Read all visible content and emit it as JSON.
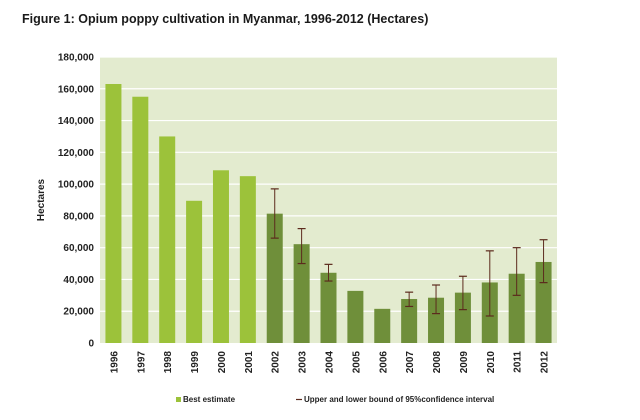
{
  "title": "Figure 1: Opium poppy cultivation in Myanmar, 1996-2012 (Hectares)",
  "colors": {
    "plot_bg": "#e3ebcf",
    "gridline": "#ffffff",
    "bar_light": "#9cc23a",
    "bar_dark": "#6f8f3a",
    "error_bar": "#5c2a1d"
  },
  "chart_data": {
    "type": "bar",
    "categories": [
      "1996",
      "1997",
      "1998",
      "1999",
      "2000",
      "2001",
      "2002",
      "2003",
      "2004",
      "2005",
      "2006",
      "2007",
      "2008",
      "2009",
      "2010",
      "2011",
      "2012"
    ],
    "series": [
      {
        "name": "Best estimate",
        "values": [
          163000,
          155000,
          130000,
          89500,
          108700,
          105000,
          81400,
          62200,
          44200,
          32800,
          21500,
          27700,
          28500,
          31700,
          38100,
          43600,
          51000
        ],
        "shade": [
          "light",
          "light",
          "light",
          "light",
          "light",
          "light",
          "dark",
          "dark",
          "dark",
          "dark",
          "dark",
          "dark",
          "dark",
          "dark",
          "dark",
          "dark",
          "dark"
        ]
      }
    ],
    "confidence_intervals": [
      null,
      null,
      null,
      null,
      null,
      null,
      [
        66000,
        97000
      ],
      [
        50000,
        72000
      ],
      [
        39000,
        49500
      ],
      null,
      null,
      [
        23000,
        32000
      ],
      [
        18500,
        36500
      ],
      [
        21000,
        42000
      ],
      [
        17000,
        58000
      ],
      [
        30000,
        60000
      ],
      [
        38000,
        65000
      ]
    ],
    "ylabel": "Hectares",
    "xlabel": "",
    "ylim": [
      0,
      180000
    ],
    "ytick_values": [
      0,
      20000,
      40000,
      60000,
      80000,
      100000,
      120000,
      140000,
      160000,
      180000
    ],
    "ytick_labels": [
      "0",
      "20,000",
      "40,000",
      "60,000",
      "80,000",
      "100,000",
      "120,000",
      "140,000",
      "160,000",
      "180,000"
    ],
    "grid": true,
    "legend": {
      "placement": "bottom",
      "entries": [
        {
          "label": "Best estimate",
          "symbol": "square"
        },
        {
          "label": "Upper and lower bound of 95%confidence interval",
          "symbol": "dash"
        }
      ]
    }
  }
}
